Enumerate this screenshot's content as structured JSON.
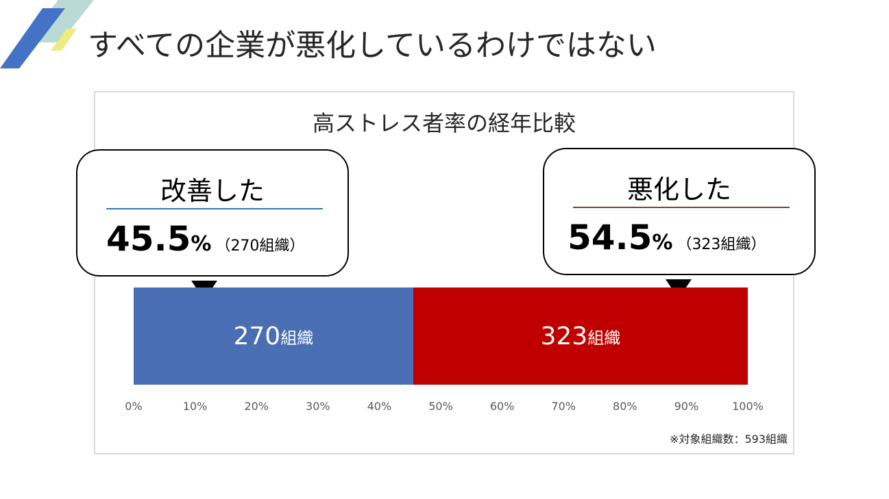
{
  "slide": {
    "title": "すべての企業が悪化しているわけではない"
  },
  "colors": {
    "improved": "#4a6eb3",
    "worsened": "#c00000",
    "logo_blue": "#4472c4",
    "logo_teal": "#b9dbd3",
    "logo_yellow": "#ecec80"
  },
  "chart_data": {
    "type": "bar",
    "orientation": "horizontal-stacked-100",
    "title": "高ストレス者率の経年比較",
    "xlim": [
      0,
      100
    ],
    "tick_labels": [
      "0%",
      "10%",
      "20%",
      "30%",
      "40%",
      "50%",
      "60%",
      "70%",
      "80%",
      "90%",
      "100%"
    ],
    "series": [
      {
        "name": "改善した",
        "percent": 45.5,
        "count": 270,
        "percent_label": "45.5",
        "count_label": "（270組織）",
        "bar_label": "270",
        "unit": "組織"
      },
      {
        "name": "悪化した",
        "percent": 54.5,
        "count": 323,
        "percent_label": "54.5",
        "count_label": "（323組織）",
        "bar_label": "323",
        "unit": "組織"
      }
    ],
    "pct_sign": "%",
    "note": "※対象組織数：593組織"
  }
}
